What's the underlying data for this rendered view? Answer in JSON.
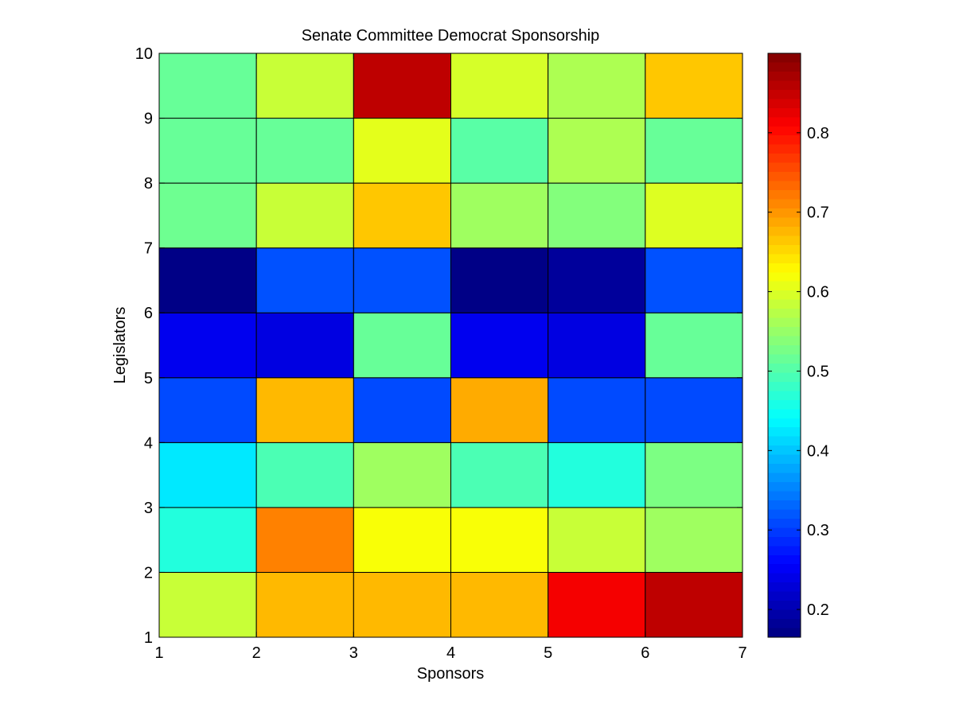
{
  "chart_data": {
    "type": "heatmap",
    "title": "Senate Committee Democrat Sponsorship",
    "xlabel": "Sponsors",
    "ylabel": "Legislators",
    "xlim": [
      1,
      7
    ],
    "ylim": [
      1,
      10
    ],
    "x_ticks": [
      "1",
      "2",
      "3",
      "4",
      "5",
      "6",
      "7"
    ],
    "y_ticks": [
      "1",
      "2",
      "3",
      "4",
      "5",
      "6",
      "7",
      "8",
      "9",
      "10"
    ],
    "colormap": "jet",
    "color_range": [
      0.165,
      0.9
    ],
    "colorbar_ticks": [
      "0.2",
      "0.3",
      "0.4",
      "0.5",
      "0.6",
      "0.7",
      "0.8"
    ],
    "colorbar_tick_values": [
      0.2,
      0.3,
      0.4,
      0.5,
      0.6,
      0.7,
      0.8
    ],
    "grid_edges": true,
    "rows_from_bottom": [
      [
        0.585,
        0.675,
        0.675,
        0.675,
        0.815,
        0.855
      ],
      [
        0.465,
        0.715,
        0.62,
        0.62,
        0.585,
        0.555
      ],
      [
        0.425,
        0.495,
        0.555,
        0.495,
        0.465,
        0.53
      ],
      [
        0.31,
        0.675,
        0.31,
        0.685,
        0.31,
        0.31
      ],
      [
        0.245,
        0.235,
        0.515,
        0.245,
        0.235,
        0.515
      ],
      [
        0.17,
        0.315,
        0.315,
        0.17,
        0.185,
        0.315
      ],
      [
        0.52,
        0.585,
        0.665,
        0.555,
        0.535,
        0.6
      ],
      [
        0.515,
        0.515,
        0.605,
        0.505,
        0.565,
        0.515
      ],
      [
        0.515,
        0.585,
        0.855,
        0.595,
        0.565,
        0.665
      ]
    ]
  }
}
